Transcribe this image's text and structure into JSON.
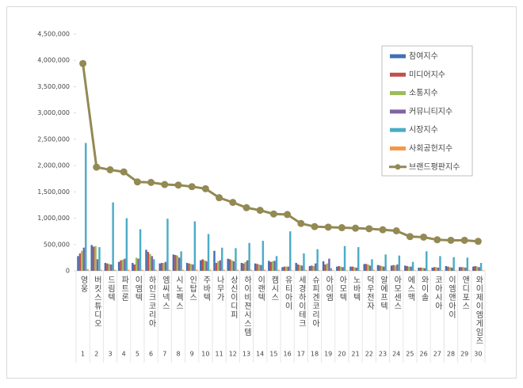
{
  "chart_data": {
    "type": "bar",
    "categories": [
      "영웅",
      "버킷스튜디오",
      "드림텍",
      "파트론",
      "이엠텍",
      "하인크코리아",
      "엠씨넥스",
      "시노펙스",
      "인탑스",
      "주바텍",
      "나무가",
      "상신이디피",
      "하이비젼시스템",
      "이랜텍",
      "캠시스",
      "유티아이",
      "세경하이테크",
      "슈피겐코리아",
      "아이엠",
      "아모텍",
      "노바텍",
      "덕우전자",
      "알에프텍",
      "아모센스",
      "에스맥",
      "와이솔",
      "코아시아",
      "이엠앤아이",
      "앤디포스",
      "와이제이엠게임즈"
    ],
    "ranks": [
      1,
      2,
      3,
      4,
      5,
      6,
      7,
      8,
      9,
      10,
      11,
      12,
      13,
      14,
      15,
      16,
      17,
      18,
      19,
      20,
      21,
      22,
      23,
      24,
      25,
      26,
      27,
      28,
      29,
      30
    ],
    "series": [
      {
        "name": "참여지수",
        "color": "#3f6fb5",
        "values": [
          280000,
          490000,
          150000,
          170000,
          150000,
          400000,
          140000,
          310000,
          150000,
          200000,
          380000,
          230000,
          150000,
          140000,
          190000,
          70000,
          150000,
          90000,
          180000,
          80000,
          80000,
          130000,
          110000,
          100000,
          100000,
          60000,
          60000,
          90000,
          70000,
          80000
        ]
      },
      {
        "name": "미디어지수",
        "color": "#c0504d",
        "values": [
          330000,
          460000,
          140000,
          200000,
          120000,
          360000,
          150000,
          300000,
          140000,
          220000,
          150000,
          220000,
          140000,
          130000,
          170000,
          80000,
          120000,
          100000,
          120000,
          90000,
          80000,
          130000,
          100000,
          110000,
          90000,
          60000,
          70000,
          80000,
          70000,
          90000
        ]
      },
      {
        "name": "소통지수",
        "color": "#9bbb59",
        "values": [
          380000,
          470000,
          130000,
          210000,
          250000,
          320000,
          150000,
          290000,
          130000,
          200000,
          180000,
          200000,
          170000,
          120000,
          180000,
          80000,
          110000,
          90000,
          140000,
          80000,
          70000,
          120000,
          90000,
          100000,
          80000,
          60000,
          70000,
          70000,
          70000,
          80000
        ]
      },
      {
        "name": "커뮤니티지수",
        "color": "#8064a2",
        "values": [
          440000,
          220000,
          120000,
          230000,
          230000,
          280000,
          170000,
          250000,
          120000,
          180000,
          200000,
          180000,
          200000,
          110000,
          190000,
          80000,
          100000,
          140000,
          230000,
          70000,
          60000,
          100000,
          80000,
          120000,
          80000,
          50000,
          60000,
          60000,
          60000,
          70000
        ]
      },
      {
        "name": "시장지수",
        "color": "#4bacc6",
        "values": [
          2430000,
          450000,
          1300000,
          1000000,
          790000,
          220000,
          990000,
          370000,
          940000,
          700000,
          440000,
          430000,
          530000,
          570000,
          280000,
          750000,
          330000,
          410000,
          50000,
          470000,
          450000,
          220000,
          310000,
          290000,
          170000,
          370000,
          280000,
          260000,
          250000,
          150000
        ]
      },
      {
        "name": "사회공헌지수",
        "color": "#f79646",
        "values": [
          30000,
          20000,
          20000,
          20000,
          20000,
          20000,
          20000,
          20000,
          20000,
          20000,
          20000,
          20000,
          20000,
          20000,
          20000,
          10000,
          20000,
          10000,
          10000,
          10000,
          10000,
          20000,
          10000,
          10000,
          10000,
          10000,
          10000,
          10000,
          10000,
          10000
        ]
      },
      {
        "name": "브랜드평판지수",
        "color": "#938953",
        "type": "line",
        "values": [
          3940000,
          1970000,
          1920000,
          1880000,
          1690000,
          1680000,
          1640000,
          1630000,
          1600000,
          1560000,
          1390000,
          1300000,
          1200000,
          1150000,
          1080000,
          1070000,
          900000,
          840000,
          830000,
          820000,
          810000,
          800000,
          780000,
          760000,
          650000,
          640000,
          590000,
          580000,
          580000,
          560000
        ]
      }
    ],
    "ylim": [
      0,
      4500000
    ],
    "yticks": [
      0,
      {
        "value": 500000,
        "label": "500,000"
      },
      {
        "value": 1000000,
        "label": "1,000,000"
      },
      {
        "value": 1500000,
        "label": "1,500,000"
      },
      {
        "value": 2000000,
        "label": "2,000,000"
      },
      {
        "value": 2500000,
        "label": "2,500,000"
      },
      {
        "value": 3000000,
        "label": "3,000,000"
      },
      {
        "value": 3500000,
        "label": "3,500,000"
      },
      {
        "value": 4000000,
        "label": "4,000,000"
      },
      {
        "value": 4500000,
        "label": "4,500,000"
      }
    ]
  }
}
